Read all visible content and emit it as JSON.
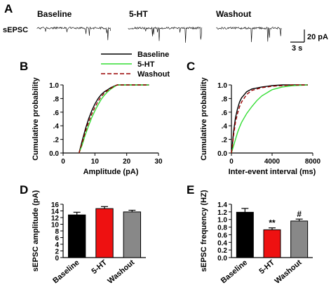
{
  "panels": {
    "A": {
      "letter": "A",
      "row_label": "sEPSC",
      "trace_labels": [
        "Baseline",
        "5-HT",
        "Washout"
      ],
      "scale_y": "20 pA",
      "scale_x": "3 s"
    },
    "B": {
      "letter": "B"
    },
    "C": {
      "letter": "C"
    },
    "D": {
      "letter": "D"
    },
    "E": {
      "letter": "E"
    }
  },
  "legend": [
    {
      "name": "Baseline",
      "color": "#000000",
      "dash": "solid"
    },
    {
      "name": "5-HT",
      "color": "#33dd33",
      "dash": "solid"
    },
    {
      "name": "Washout",
      "color": "#990000",
      "dash": "dashed"
    }
  ],
  "chart_data": [
    {
      "id": "B",
      "type": "line",
      "xlabel": "Amplitude (pA)",
      "ylabel": "Cumulative probability",
      "xlim": [
        0,
        30
      ],
      "ylim": [
        0,
        1.0
      ],
      "xticks": [
        "0",
        "10",
        "20",
        "30"
      ],
      "yticks": [
        "0.0",
        ".2",
        ".4",
        ".6",
        ".8",
        "1.0"
      ],
      "series": [
        {
          "name": "Baseline",
          "x": [
            5,
            6,
            7,
            8,
            9,
            10,
            11,
            12,
            13,
            14,
            15,
            16,
            17,
            20,
            27
          ],
          "y": [
            0,
            0.18,
            0.35,
            0.5,
            0.62,
            0.72,
            0.8,
            0.86,
            0.9,
            0.93,
            0.96,
            0.98,
            1.0,
            1.0,
            1.0
          ]
        },
        {
          "name": "5-HT",
          "x": [
            5,
            6,
            7,
            8,
            9,
            10,
            11,
            12,
            13,
            14,
            15,
            16,
            17,
            20,
            27
          ],
          "y": [
            0,
            0.12,
            0.27,
            0.4,
            0.52,
            0.62,
            0.71,
            0.79,
            0.85,
            0.9,
            0.94,
            0.97,
            1.0,
            1.0,
            1.0
          ]
        },
        {
          "name": "Washout",
          "x": [
            5,
            6,
            7,
            8,
            9,
            10,
            11,
            12,
            13,
            14,
            15,
            16,
            17,
            20,
            27
          ],
          "y": [
            0,
            0.15,
            0.31,
            0.45,
            0.57,
            0.67,
            0.76,
            0.83,
            0.88,
            0.92,
            0.95,
            0.98,
            1.0,
            1.0,
            1.0
          ]
        }
      ]
    },
    {
      "id": "C",
      "type": "line",
      "xlabel": "Inter-event interval (ms)",
      "ylabel": "Cumulative probability",
      "xlim": [
        0,
        8000
      ],
      "ylim": [
        0,
        1.0
      ],
      "xticks": [
        "0",
        "4000",
        "8000"
      ],
      "yticks": [
        "0.0",
        ".2",
        ".4",
        ".6",
        ".8",
        "1.0"
      ],
      "series": [
        {
          "name": "Baseline",
          "x": [
            0,
            100,
            200,
            400,
            600,
            800,
            1000,
            1500,
            2000,
            3000,
            4000,
            5000,
            6000,
            7500
          ],
          "y": [
            0,
            0.12,
            0.3,
            0.52,
            0.65,
            0.75,
            0.81,
            0.9,
            0.94,
            0.97,
            0.99,
            1.0,
            1.0,
            1.0
          ]
        },
        {
          "name": "5-HT",
          "x": [
            0,
            200,
            400,
            600,
            800,
            1000,
            1500,
            2000,
            2500,
            3000,
            4000,
            5000,
            6000,
            7500
          ],
          "y": [
            0,
            0.1,
            0.2,
            0.3,
            0.38,
            0.45,
            0.58,
            0.68,
            0.77,
            0.84,
            0.93,
            0.97,
            0.99,
            1.0
          ]
        },
        {
          "name": "Washout",
          "x": [
            0,
            100,
            200,
            400,
            600,
            800,
            1000,
            1500,
            2000,
            3000,
            4000,
            5000,
            6000,
            7500
          ],
          "y": [
            0,
            0.1,
            0.25,
            0.45,
            0.58,
            0.68,
            0.75,
            0.86,
            0.92,
            0.96,
            0.98,
            0.99,
            1.0,
            1.0
          ]
        }
      ]
    },
    {
      "id": "D",
      "type": "bar",
      "ylabel": "sEPSC amplitude (pA)",
      "ylim": [
        0,
        16
      ],
      "yticks": [
        "0",
        "2",
        "4",
        "6",
        "8",
        "10",
        "12",
        "14",
        "16"
      ],
      "categories": [
        "Baseline",
        "5-HT",
        "Washout"
      ],
      "values": [
        12.8,
        14.7,
        13.7
      ],
      "errors": [
        0.8,
        0.6,
        0.5
      ],
      "colors": [
        "#000000",
        "#ee1111",
        "#888888"
      ],
      "annotations": [
        "",
        "",
        ""
      ]
    },
    {
      "id": "E",
      "type": "bar",
      "ylabel": "sEPSC frequency (HZ)",
      "ylim": [
        0,
        1.4
      ],
      "yticks": [
        "0.0",
        "0.2",
        "0.4",
        "0.6",
        "0.8",
        "1.0",
        "1.2",
        "1.4"
      ],
      "categories": [
        "Baseline",
        "5-HT",
        "Washout"
      ],
      "values": [
        1.19,
        0.73,
        0.96
      ],
      "errors": [
        0.1,
        0.05,
        0.05
      ],
      "colors": [
        "#000000",
        "#ee1111",
        "#888888"
      ],
      "annotations": [
        "",
        "**",
        "#"
      ]
    }
  ]
}
